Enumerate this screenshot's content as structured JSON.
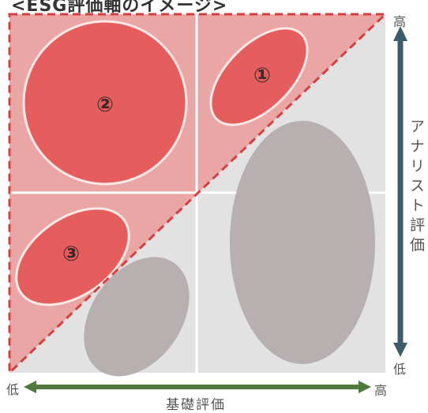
{
  "title": "<ESG評価軸のイメージ>",
  "y_axis": {
    "title": "アナリスト評価",
    "high": "高",
    "low": "低"
  },
  "x_axis": {
    "title": "基礎評価",
    "high": "高",
    "low": "低"
  },
  "regions": [
    {
      "label": "①"
    },
    {
      "label": "②"
    },
    {
      "label": "③"
    }
  ],
  "colors": {
    "grid_background": "#e3e2e2",
    "red_zone": "#eaa5a5",
    "red_ellipse": "#e65d5d",
    "grey_ellipse": "#b8b0b0",
    "dashed_border": "#d44040",
    "y_arrow": "#3c5b6b",
    "x_arrow": "#4f7a3c"
  }
}
